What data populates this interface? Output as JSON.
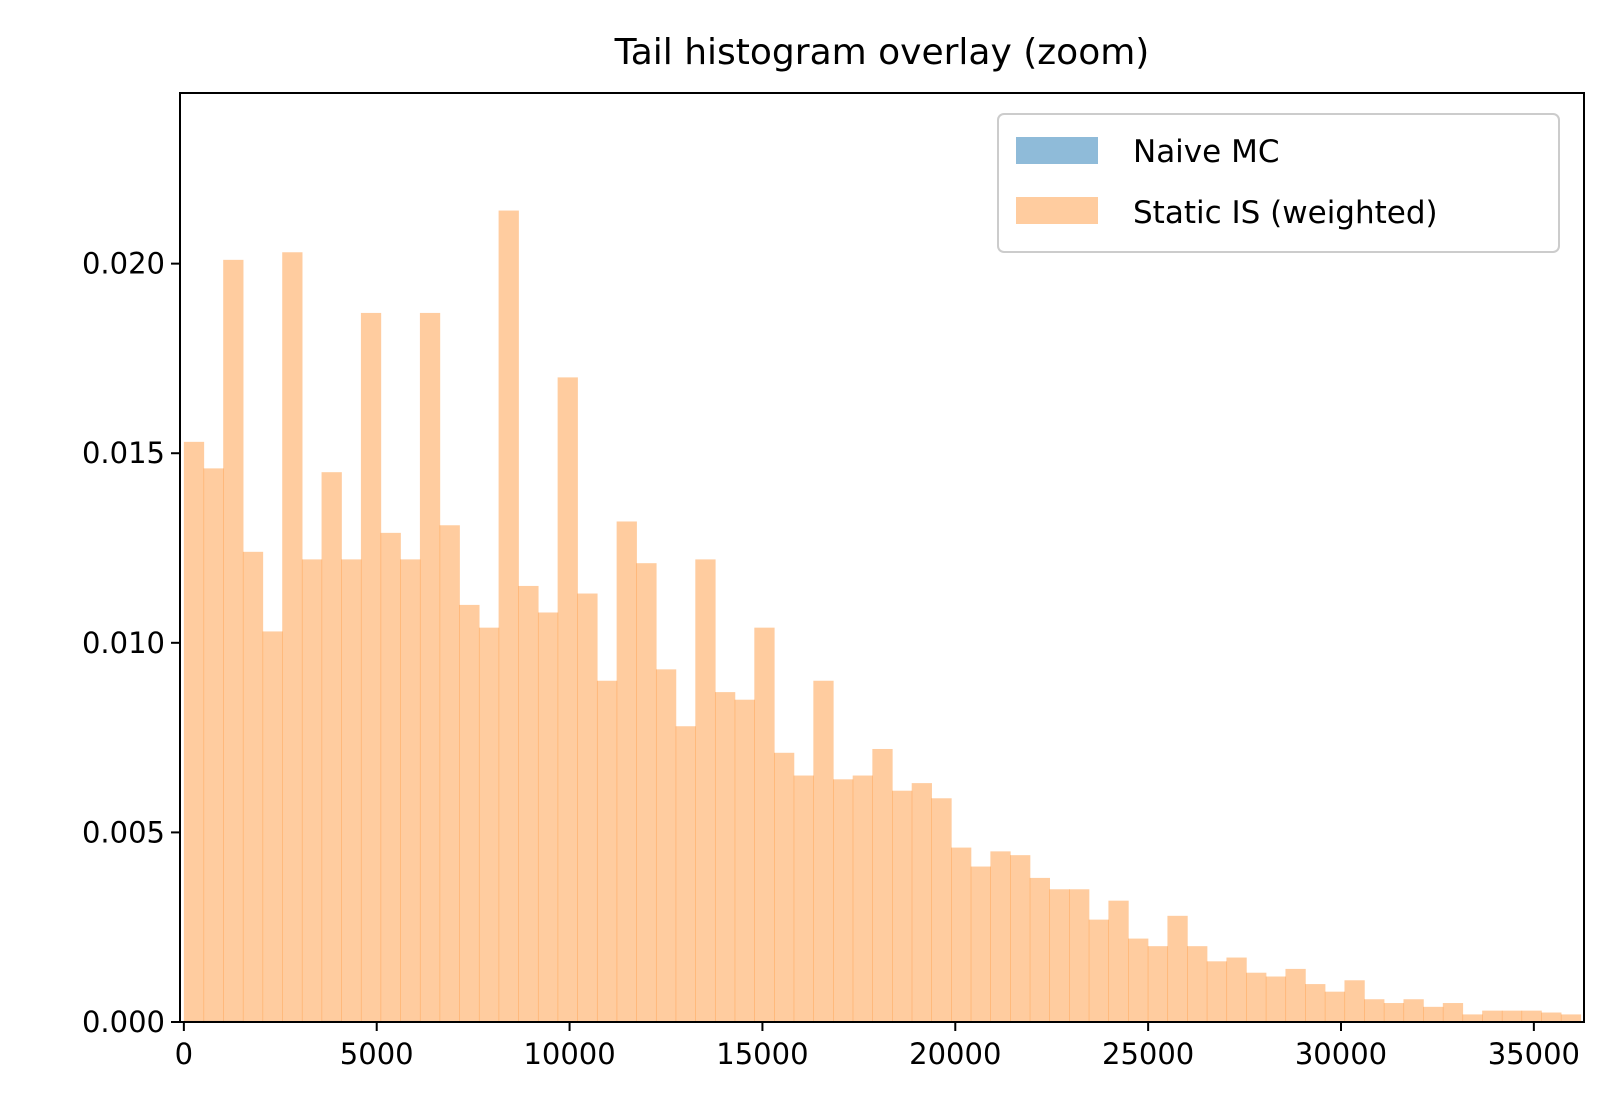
{
  "chart_data": {
    "type": "bar",
    "title": "Tail histogram overlay (zoom)",
    "xlabel": "",
    "ylabel": "",
    "xlim": [
      -100,
      36300
    ],
    "ylim": [
      0,
      0.0245
    ],
    "xticks": [
      0,
      5000,
      10000,
      15000,
      20000,
      25000,
      30000,
      35000
    ],
    "xtick_labels": [
      "0",
      "5000",
      "10000",
      "15000",
      "20000",
      "25000",
      "30000",
      "35000"
    ],
    "yticks": [
      0,
      0.005,
      0.01,
      0.015,
      0.02
    ],
    "ytick_labels": [
      "0.000",
      "0.005",
      "0.010",
      "0.015",
      "0.020"
    ],
    "grid": false,
    "legend_position": "top-right",
    "bin_start": 0,
    "bin_width": 510,
    "series": [
      {
        "name": "Naive MC",
        "color": "#1f77b4",
        "opacity": 0.5,
        "values": [
          3e-05,
          3e-05,
          3e-05,
          2e-05,
          2e-05,
          2e-05,
          2e-05,
          3e-05,
          2e-05,
          2e-05,
          2e-05,
          3e-05,
          2e-05,
          2e-05,
          2e-05,
          2e-05,
          2e-05,
          2e-05,
          1e-05,
          1e-05,
          1e-05,
          1e-05,
          1e-05,
          1e-05,
          1e-05,
          1e-05,
          1e-05,
          1e-05,
          1e-05,
          1e-05,
          1e-05,
          1e-05,
          1e-05,
          1e-05,
          1e-05,
          1e-05,
          1e-05,
          1e-05,
          1e-05,
          1e-05,
          1e-05,
          1e-05,
          1e-05,
          1e-05,
          1e-05,
          1e-05,
          1e-05,
          1e-05,
          1e-05,
          1e-05,
          1e-05,
          1e-05,
          1e-05,
          1e-05,
          1e-05,
          1e-05,
          1e-05,
          1e-05,
          1e-05,
          1e-05,
          1e-05,
          1e-05,
          1e-05,
          1e-05,
          1e-05,
          1e-05,
          1e-05,
          1e-05,
          1e-05,
          1e-05,
          1e-05
        ]
      },
      {
        "name": "Static IS (weighted)",
        "color": "#ff7f0e",
        "opacity": 0.4,
        "values": [
          0.0153,
          0.0146,
          0.0201,
          0.0124,
          0.0103,
          0.0203,
          0.0122,
          0.0145,
          0.0122,
          0.0187,
          0.0129,
          0.0122,
          0.0187,
          0.0131,
          0.011,
          0.0104,
          0.0214,
          0.0115,
          0.0108,
          0.017,
          0.0113,
          0.009,
          0.0132,
          0.0121,
          0.0093,
          0.0078,
          0.0122,
          0.0087,
          0.0085,
          0.0104,
          0.0071,
          0.0065,
          0.009,
          0.0064,
          0.0065,
          0.0072,
          0.0061,
          0.0063,
          0.0059,
          0.0046,
          0.0041,
          0.0045,
          0.0044,
          0.0038,
          0.0035,
          0.0035,
          0.0027,
          0.0032,
          0.0022,
          0.002,
          0.0028,
          0.002,
          0.0016,
          0.0017,
          0.0013,
          0.0012,
          0.0014,
          0.001,
          0.0008,
          0.0011,
          0.0006,
          0.0005,
          0.0006,
          0.0004,
          0.0005,
          0.0002,
          0.0003,
          0.0003,
          0.0003,
          0.00025,
          0.0002
        ]
      }
    ]
  }
}
